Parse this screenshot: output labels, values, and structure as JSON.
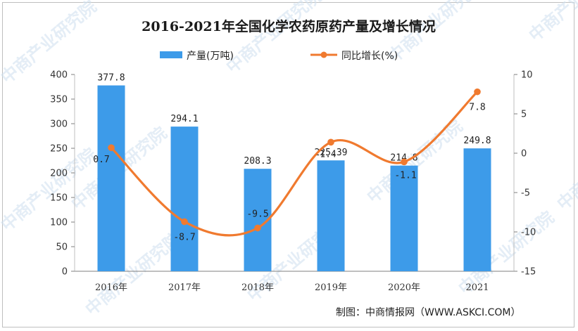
{
  "chart_data": {
    "type": "bar",
    "title": "2016-2021年全国化学农药原药产量及增长情况",
    "categories": [
      "2016年",
      "2017年",
      "2018年",
      "2019年",
      "2020年",
      "2021"
    ],
    "series": [
      {
        "name": "产量(万吨)",
        "type": "bar",
        "axis": "left",
        "color": "#3d9be9",
        "values": [
          377.8,
          294.1,
          208.3,
          225.39,
          214.8,
          249.8
        ],
        "labels": [
          "377.8",
          "294.1",
          "208.3",
          "225.39",
          "214.8",
          "249.8"
        ]
      },
      {
        "name": "同比增长(%)",
        "type": "line",
        "axis": "right",
        "color": "#f07a2f",
        "values": [
          0.7,
          -8.7,
          -9.5,
          1.4,
          -1.1,
          7.8
        ],
        "labels": [
          "0.7",
          "-8.7",
          "-9.5",
          "1.4",
          "-1.1",
          "7.8"
        ]
      }
    ],
    "y_left": {
      "min": 0,
      "max": 400,
      "ticks": [
        "0",
        "50",
        "100",
        "150",
        "200",
        "250",
        "300",
        "350",
        "400"
      ]
    },
    "y_right": {
      "min": -15,
      "max": 10,
      "ticks": [
        "-15",
        "-10",
        "-5",
        "0",
        "5",
        "10"
      ]
    },
    "grid": false,
    "legend": "top-center"
  },
  "source": "制图：中商情报网（WWW.ASKCI.COM）",
  "watermark": "中商产业研究院"
}
